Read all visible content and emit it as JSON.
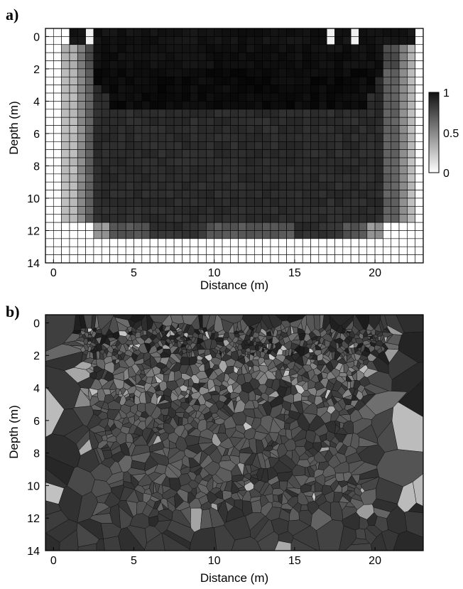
{
  "chart_data": [
    {
      "type": "heatmap",
      "panel_label": "a)",
      "xlabel": "Distance (m)",
      "ylabel": "Depth (m)",
      "xlim": [
        -0.5,
        23
      ],
      "ylim": [
        14,
        -0.5
      ],
      "x_ticks": [
        "0",
        "5",
        "10",
        "15",
        "20"
      ],
      "y_ticks": [
        "0",
        "2",
        "4",
        "6",
        "8",
        "10",
        "12",
        "14"
      ],
      "grid": true,
      "colorbar": {
        "ticks": [
          "1",
          "0.5",
          "0"
        ],
        "range": [
          0,
          1
        ],
        "colormap": "white-to-black"
      },
      "regions": [
        {
          "description": "top shallow zone",
          "x_range": [
            0.8,
            22.5
          ],
          "y_range": [
            0,
            2
          ],
          "value": 0.92
        },
        {
          "description": "shallow dark wedge",
          "x_range": [
            2,
            20
          ],
          "y_range": [
            2,
            4.7
          ],
          "value": 0.95
        },
        {
          "description": "main body",
          "x_range": [
            1.3,
            21.5
          ],
          "y_range": [
            4.7,
            11.6
          ],
          "value": 0.82
        },
        {
          "description": "lateral edges",
          "x_range": [
            0.8,
            22.5
          ],
          "y_range": [
            1,
            11.6
          ],
          "value": 0.55
        },
        {
          "description": "bottom band",
          "x_range": [
            2.5,
            20.5
          ],
          "y_range": [
            11.6,
            12.5
          ],
          "value": 0.7
        }
      ]
    },
    {
      "type": "heatmap",
      "panel_label": "b)",
      "xlabel": "Distance (m)",
      "ylabel": "Depth (m)",
      "xlim": [
        -0.5,
        23
      ],
      "ylim": [
        14,
        -0.5
      ],
      "x_ticks": [
        "0",
        "5",
        "10",
        "15",
        "20"
      ],
      "y_ticks": [
        "0",
        "2",
        "4",
        "6",
        "8",
        "10",
        "12",
        "14"
      ],
      "grid": false,
      "colormap": "grayscale Voronoi cells"
    }
  ]
}
